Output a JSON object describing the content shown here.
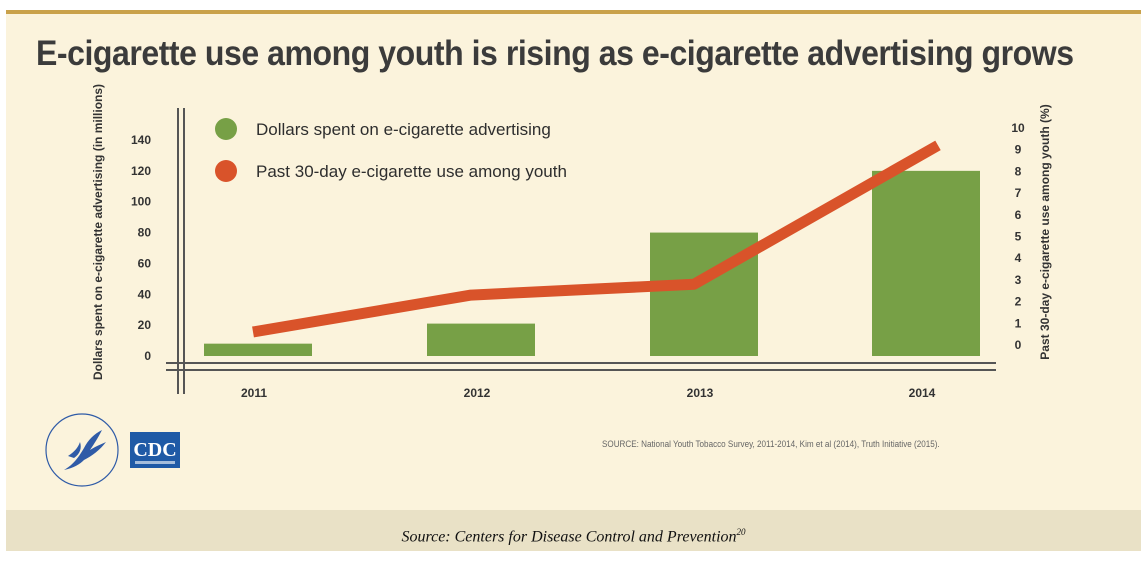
{
  "title": "E-cigarette use among youth is rising as e-cigarette advertising grows",
  "source_note": "SOURCE: National Youth Tobacco Survey, 2011-2014, Kim et al (2014), Truth Initiative (2015).",
  "logo_text": "CDC",
  "caption": "Source: Centers for Disease Control and Prevention",
  "caption_ref": "20",
  "colors": {
    "bars": "#77a046",
    "line": "#d9532a",
    "background": "#fbf3dc",
    "caption_bar": "#e9e1c6",
    "top_rule": "#c9a14a"
  },
  "chart_data": {
    "type": "bar",
    "categories": [
      "2011",
      "2012",
      "2013",
      "2014"
    ],
    "series": [
      {
        "name": "Dollars spent on e-cigarette advertising",
        "type": "bar",
        "axis": "left",
        "values": [
          8,
          21,
          80,
          120
        ]
      },
      {
        "name": "Past 30-day e-cigarette use among youth",
        "type": "line",
        "axis": "right",
        "values": [
          0.6,
          2.3,
          2.8,
          9.2
        ]
      }
    ],
    "ylabel": "Dollars spent on e-cigarette advertising (in millions)",
    "y2label": "Past 30-day e-cigarette use among youth (%)",
    "ylim": [
      0,
      140
    ],
    "yticks": [
      "0",
      "20",
      "40",
      "60",
      "80",
      "100",
      "120",
      "140"
    ],
    "y2lim": [
      0,
      10
    ],
    "y2ticks": [
      "0",
      "1",
      "2",
      "3",
      "4",
      "5",
      "6",
      "7",
      "8",
      "9",
      "10"
    ],
    "grid": false,
    "legend": "top-left"
  }
}
